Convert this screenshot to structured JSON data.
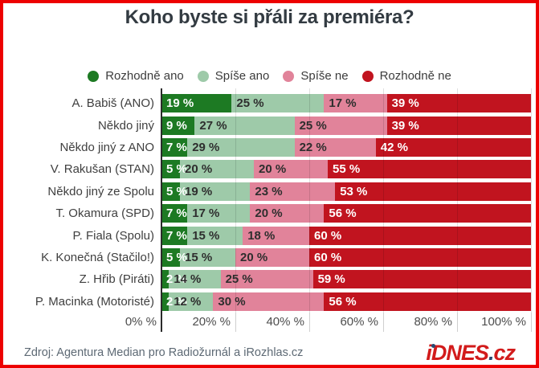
{
  "title": "Koho byste si přáli za premiéra?",
  "legend": [
    {
      "label": "Rozhodně ano",
      "color": "#1d7a23"
    },
    {
      "label": "Spíše ano",
      "color": "#9ecaa9"
    },
    {
      "label": "Spíše ne",
      "color": "#e1839a"
    },
    {
      "label": "Rozhodně ne",
      "color": "#c1141f"
    }
  ],
  "chart_data": {
    "type": "bar",
    "orientation": "horizontal",
    "stacked": true,
    "title": "Koho byste si přáli za premiéra?",
    "value_suffix": " %",
    "xlim": [
      0,
      100
    ],
    "grid": true,
    "legend_position": "top",
    "categories": [
      "A. Babiš (ANO)",
      "Někdo jiný",
      "Někdo jiný z ANO",
      "V. Rakušan (STAN)",
      "Někdo jiný ze Spolu",
      "T. Okamura (SPD)",
      "P. Fiala (Spolu)",
      "K. Konečná (Stačilo!)",
      "Z. Hřib (Piráti)",
      "P. Macinka (Motoristé)"
    ],
    "series": [
      {
        "name": "Rozhodně ano",
        "color": "#1d7a23",
        "label_color": "#ffffff",
        "values": [
          19,
          9,
          7,
          5,
          5,
          7,
          7,
          5,
          2,
          2
        ]
      },
      {
        "name": "Spíše ano",
        "color": "#9ecaa9",
        "label_color": "#2e2e2e",
        "values": [
          25,
          27,
          29,
          20,
          19,
          17,
          15,
          15,
          14,
          12
        ]
      },
      {
        "name": "Spíše ne",
        "color": "#e1839a",
        "label_color": "#2e2e2e",
        "values": [
          17,
          25,
          22,
          20,
          23,
          20,
          18,
          20,
          25,
          30
        ]
      },
      {
        "name": "Rozhodně ne",
        "color": "#c1141f",
        "label_color": "#ffffff",
        "values": [
          39,
          39,
          42,
          55,
          53,
          56,
          60,
          60,
          59,
          56
        ]
      }
    ],
    "x_ticks": [
      {
        "label": "0% %",
        "pos": 0
      },
      {
        "label": "20% %",
        "pos": 20
      },
      {
        "label": "40% %",
        "pos": 40
      },
      {
        "label": "60% %",
        "pos": 60
      },
      {
        "label": "80% %",
        "pos": 80
      },
      {
        "label": "100% %",
        "pos": 100
      }
    ],
    "gridline_positions": [
      20,
      40,
      60,
      80,
      100
    ]
  },
  "footer": {
    "source": "Zdroj: Agentura Median pro Radiožurnál a iRozhlas.cz",
    "logo": {
      "part1": "iDNES",
      "dot": ".",
      "part2": "cz"
    }
  },
  "colors": {
    "frame_border": "#ed0000",
    "title_text": "#333b42",
    "axis_line": "#2b2b2b"
  }
}
